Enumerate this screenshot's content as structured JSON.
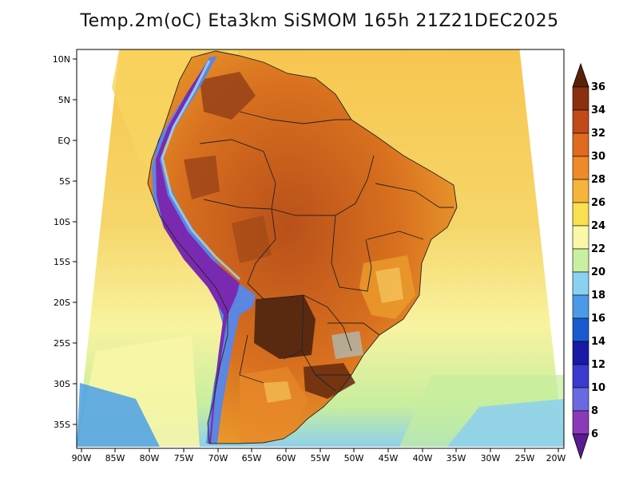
{
  "title": "Temp.2m(oC) Eta3km SiSMOM 165h 21Z21DEC2025",
  "colors": {
    "ocean_warm": "#f7c54f",
    "ocean_mid": "#f4e57a",
    "ocean_cool": "#f8f6a6",
    "ocean_cold": "#9fd8f0",
    "land_hot": "#cf5a1c",
    "land_very_hot": "#8a3b14",
    "land_extreme": "#5a2a10",
    "land_warm": "#e8892a",
    "andes_cold": "#3c64d8",
    "andes_very_cold": "#6a2aa0",
    "boundary": "#222222"
  },
  "map": {
    "lon_labels": [
      "90W",
      "85W",
      "80W",
      "75W",
      "70W",
      "65W",
      "60W",
      "55W",
      "50W",
      "45W",
      "40W",
      "35W",
      "30W",
      "25W",
      "20W"
    ],
    "lat_labels": [
      "10N",
      "5N",
      "EQ",
      "5S",
      "10S",
      "15S",
      "20S",
      "25S",
      "30S",
      "35S"
    ]
  },
  "colorbar": {
    "labels": [
      "6",
      "8",
      "10",
      "12",
      "14",
      "16",
      "18",
      "20",
      "22",
      "24",
      "26",
      "28",
      "30",
      "32",
      "34",
      "36"
    ],
    "colors": [
      "#5a1a90",
      "#8a3ab8",
      "#6a6ae0",
      "#3a3ad0",
      "#1a1aa8",
      "#1a5ad0",
      "#4a9ae8",
      "#8ad0f0",
      "#c8f0a0",
      "#f8f8a8",
      "#f8e050",
      "#f7b43a",
      "#f08a28",
      "#e06a20",
      "#c04a18",
      "#8a3010",
      "#5a2008"
    ]
  }
}
